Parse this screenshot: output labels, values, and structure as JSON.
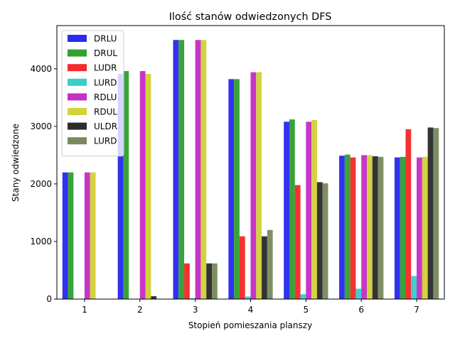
{
  "chart_data": {
    "type": "bar",
    "title": "Ilość stanów odwiedzonych DFS",
    "xlabel": "Stopień pomieszania planszy",
    "ylabel": "Stany odwiedzone",
    "categories": [
      "1",
      "2",
      "3",
      "4",
      "5",
      "6",
      "7"
    ],
    "yticks": [
      0,
      1000,
      2000,
      3000,
      4000
    ],
    "ylim": [
      0,
      4750
    ],
    "grid": false,
    "legend_position": "top-left",
    "series": [
      {
        "name": "DRLU",
        "color": "#2a2af0",
        "values": [
          2200,
          3910,
          4500,
          3820,
          3080,
          2490,
          2460
        ]
      },
      {
        "name": "DRUL",
        "color": "#33a033",
        "values": [
          2200,
          3960,
          4500,
          3820,
          3120,
          2510,
          2470
        ]
      },
      {
        "name": "LUDR",
        "color": "#f52a2a",
        "values": [
          0,
          0,
          620,
          1090,
          1980,
          2460,
          2950
        ]
      },
      {
        "name": "LURD",
        "color": "#3ccccc",
        "values": [
          0,
          0,
          15,
          45,
          85,
          180,
          400
        ]
      },
      {
        "name": "RDLU",
        "color": "#c530c5",
        "values": [
          2200,
          3960,
          4500,
          3940,
          3080,
          2500,
          2460
        ]
      },
      {
        "name": "RDUL",
        "color": "#d2d23a",
        "values": [
          2200,
          3910,
          4500,
          3940,
          3110,
          2500,
          2470
        ]
      },
      {
        "name": "ULDR",
        "color": "#2d2d2d",
        "values": [
          0,
          50,
          620,
          1090,
          2030,
          2480,
          2980
        ]
      },
      {
        "name": "LURD",
        "color": "#7a8a60",
        "values": [
          0,
          0,
          620,
          1200,
          2010,
          2470,
          2970
        ]
      }
    ]
  }
}
